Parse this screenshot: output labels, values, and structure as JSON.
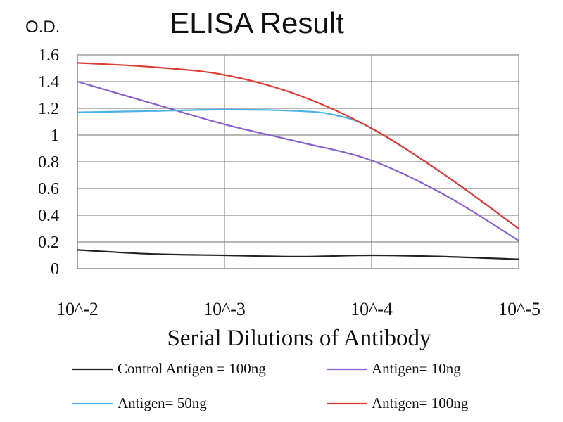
{
  "chart_data": {
    "type": "line",
    "title": "ELISA Result",
    "ylabel": "O.D.",
    "xlabel": "Serial Dilutions of Antibody",
    "categories": [
      "10^-2",
      "10^-3",
      "10^-4",
      "10^-5"
    ],
    "ylim": [
      0,
      1.6
    ],
    "yticks": [
      0,
      0.2,
      0.4,
      0.6,
      0.8,
      1,
      1.2,
      1.4,
      1.6
    ],
    "ytick_labels": [
      "0",
      "0.2",
      "0.4",
      "0.6",
      "0.8",
      "1",
      "1.2",
      "1.4",
      "1.6"
    ],
    "grid": true,
    "legend_position": "bottom",
    "series": [
      {
        "name": "Control Antigen = 100ng",
        "color": "#222222",
        "x": [
          0,
          0.5,
          1,
          1.5,
          2,
          2.5,
          3
        ],
        "values": [
          0.14,
          0.11,
          0.1,
          0.09,
          0.1,
          0.09,
          0.07
        ]
      },
      {
        "name": "Antigen= 10ng",
        "color": "#8b5fd0",
        "x": [
          0,
          0.5,
          1,
          1.5,
          2,
          2.5,
          3
        ],
        "values": [
          1.4,
          1.24,
          1.08,
          0.95,
          0.81,
          0.55,
          0.21
        ]
      },
      {
        "name": "Antigen= 50ng",
        "color": "#4bb3e8",
        "x": [
          0,
          0.5,
          1,
          1.5,
          1.75,
          2,
          2.5,
          3
        ],
        "values": [
          1.17,
          1.18,
          1.19,
          1.18,
          1.15,
          1.05,
          0.7,
          0.3
        ]
      },
      {
        "name": "Antigen= 100ng",
        "color": "#e03b33",
        "x": [
          0,
          0.5,
          1,
          1.5,
          2,
          2.5,
          3
        ],
        "values": [
          1.54,
          1.51,
          1.45,
          1.3,
          1.05,
          0.7,
          0.3
        ]
      }
    ]
  }
}
